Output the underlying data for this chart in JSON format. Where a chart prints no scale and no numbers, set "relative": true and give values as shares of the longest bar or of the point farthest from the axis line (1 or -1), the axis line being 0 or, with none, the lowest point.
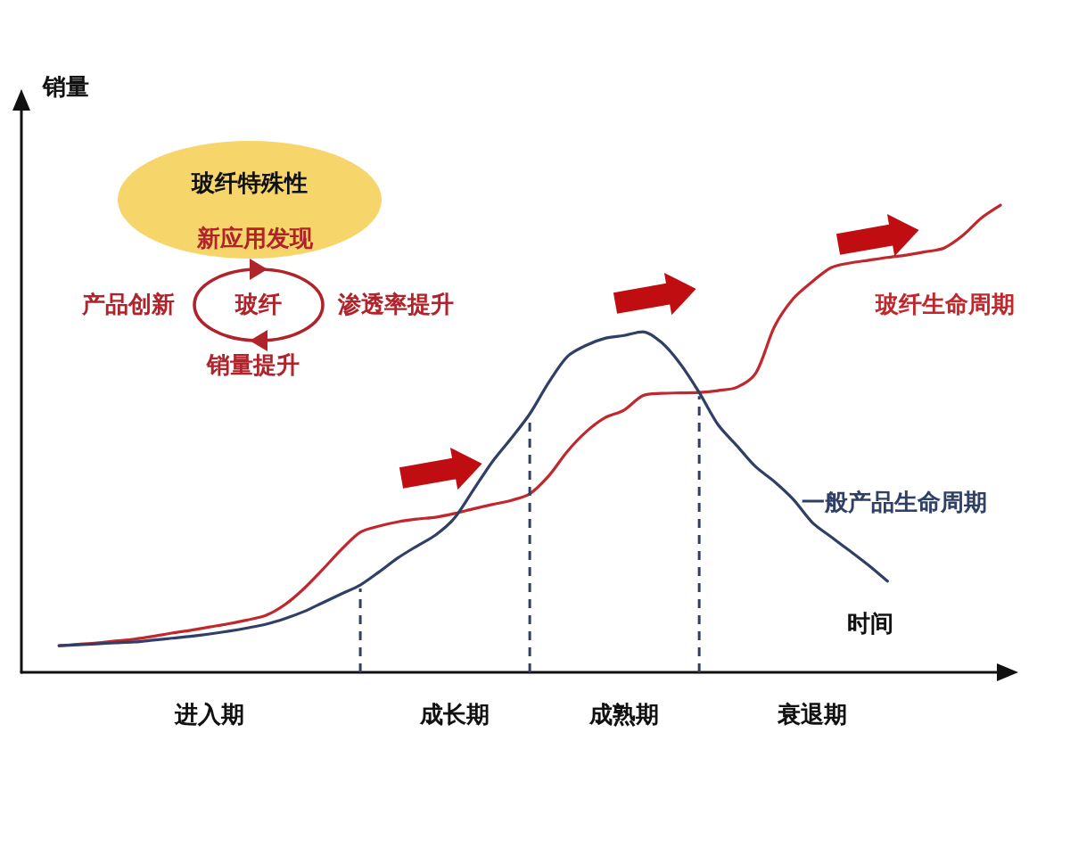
{
  "chart_data": {
    "type": "line",
    "relative": true,
    "xlabel": "时间",
    "ylabel": "销量",
    "categories": [
      null,
      null,
      null,
      null,
      null,
      null,
      null,
      null,
      null,
      null,
      "进入期",
      null,
      null,
      null,
      null,
      null,
      null,
      null,
      null,
      null,
      null,
      null,
      null,
      "成长期",
      null,
      null,
      null,
      null,
      null,
      null,
      null,
      null,
      "成熟期",
      null,
      null,
      null,
      null,
      null,
      null,
      null,
      null,
      null,
      "衰退期",
      null,
      null,
      null,
      null,
      null,
      null,
      null,
      null,
      null,
      null
    ],
    "tick_labels": "x",
    "grid": false,
    "legend": false,
    "marker": "none",
    "line_style": "solid",
    "series": [
      {
        "name": "玻纤生命周期",
        "color": "#c0282d",
        "values": [
          null,
          null,
          0.057,
          0.06,
          0.063,
          0.067,
          0.071,
          0.077,
          0.084,
          0.09,
          0.097,
          0.104,
          0.112,
          0.122,
          0.145,
          0.179,
          0.22,
          0.263,
          0.3,
          0.313,
          0.322,
          0.328,
          0.332,
          0.34,
          0.35,
          0.359,
          0.368,
          0.382,
          0.42,
          0.473,
          0.515,
          0.545,
          0.561,
          0.592,
          0.597,
          0.598,
          0.599,
          0.603,
          0.61,
          0.64,
          0.74,
          0.8,
          0.836,
          0.866,
          0.876,
          0.882,
          0.888,
          0.893,
          0.9,
          0.908,
          0.935,
          0.973,
          1
        ]
      },
      {
        "name": "一般产品生命周期",
        "color": "#2f3f66",
        "values": [
          null,
          null,
          0.057,
          0.059,
          0.061,
          0.063,
          0.065,
          0.069,
          0.073,
          0.077,
          0.082,
          0.088,
          0.095,
          0.103,
          0.115,
          0.13,
          0.149,
          0.168,
          0.187,
          0.215,
          0.245,
          0.27,
          0.294,
          0.33,
          0.39,
          0.45,
          0.5,
          0.553,
          0.62,
          0.676,
          0.7,
          0.715,
          0.721,
          0.729,
          0.706,
          0.66,
          0.599,
          0.53,
          0.485,
          0.44,
          0.408,
          0.37,
          0.321,
          0.29,
          0.26,
          0.229,
          0.195,
          null,
          null,
          null,
          null,
          null,
          null
        ]
      }
    ],
    "annotations": [
      "玻纤特殊性",
      "新应用发现",
      "产品创新",
      "玻纤",
      "渗透率提升",
      "销量提升"
    ]
  }
}
